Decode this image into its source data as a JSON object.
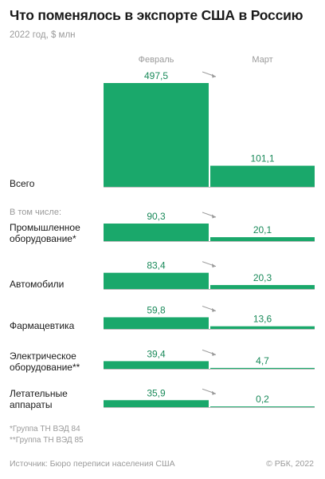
{
  "title": "Что поменялось в экспорте США в Россию",
  "subtitle": "2022 год, $ млн",
  "chart_data": {
    "type": "bar",
    "columns": [
      "Февраль",
      "Март"
    ],
    "subheader": "В том числе:",
    "groups": [
      {
        "category": "Всего",
        "values": [
          497.5,
          101.1
        ],
        "labels": [
          "497,5",
          "101,1"
        ]
      },
      {
        "category": "Промышленное оборудование*",
        "lines": [
          "Промышленное",
          "оборудование*"
        ],
        "values": [
          90.3,
          20.1
        ],
        "labels": [
          "90,3",
          "20,1"
        ]
      },
      {
        "category": "Автомобили",
        "lines": [
          "Автомобили"
        ],
        "values": [
          83.4,
          20.3
        ],
        "labels": [
          "83,4",
          "20,3"
        ]
      },
      {
        "category": "Фармацевтика",
        "lines": [
          "Фармацевтика"
        ],
        "values": [
          59.8,
          13.6
        ],
        "labels": [
          "59,8",
          "13,6"
        ]
      },
      {
        "category": "Электрическое оборудование**",
        "lines": [
          "Электрическое",
          "оборудование**"
        ],
        "values": [
          39.4,
          4.7
        ],
        "labels": [
          "39,4",
          "4,7"
        ]
      },
      {
        "category": "Летательные аппараты",
        "lines": [
          "Летательные",
          "аппараты"
        ],
        "values": [
          35.9,
          0.2
        ],
        "labels": [
          "35,9",
          "0,2"
        ]
      }
    ],
    "colors": {
      "bar": "#1aa86b",
      "label": "#1a8a5a",
      "axis": "#bdbdbd",
      "arrow": "#9a9a9a",
      "header": "#9a9a9a"
    }
  },
  "footnotes": [
    "*Группа ТН ВЭД 84",
    "**Группа ТН ВЭД 85"
  ],
  "source": "Источник: Бюро переписи населения США",
  "copyright": "© РБК, 2022"
}
